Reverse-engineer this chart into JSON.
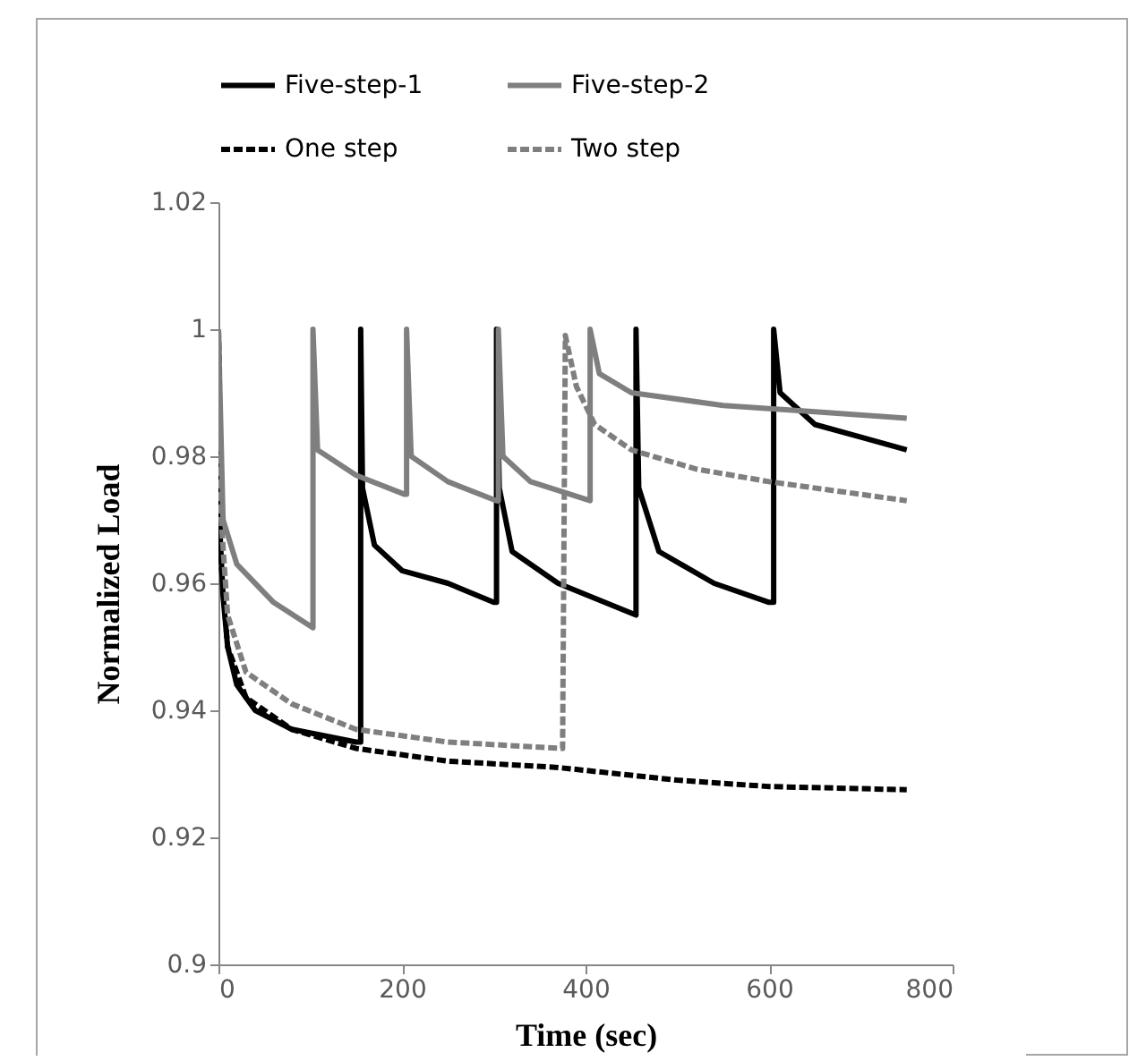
{
  "chart_data": {
    "type": "line",
    "xlabel": "Time (sec)",
    "ylabel": "Normalized Load",
    "xlim": [
      0,
      800
    ],
    "xticks": [
      0,
      200,
      400,
      600,
      800
    ],
    "ylim": [
      0.9,
      1.02
    ],
    "yticks": [
      0.9,
      0.92,
      0.94,
      0.96,
      0.98,
      1,
      1.02
    ],
    "grid": false,
    "legend": "top",
    "marker": "none",
    "series": [
      {
        "name": "Five-step-1",
        "color": "#000000",
        "line_style": "solid",
        "x": [
          0,
          2,
          5,
          10,
          20,
          40,
          80,
          150,
          155,
          155,
          157,
          170,
          200,
          250,
          300,
          303,
          303,
          306,
          320,
          370,
          455,
          455,
          455,
          458,
          480,
          540,
          600,
          605,
          605,
          612,
          650,
          700,
          750
        ],
        "values": [
          1,
          0.967,
          0.958,
          0.95,
          0.944,
          0.94,
          0.937,
          0.935,
          0.935,
          1,
          0.975,
          0.966,
          0.962,
          0.96,
          0.957,
          0.957,
          1,
          0.975,
          0.965,
          0.96,
          0.955,
          0.955,
          1,
          0.975,
          0.965,
          0.96,
          0.957,
          0.957,
          1,
          0.99,
          0.985,
          0.983,
          0.981
        ]
      },
      {
        "name": "Five-step-2",
        "color": "#7f7f7f",
        "line_style": "solid",
        "x": [
          0,
          5,
          20,
          60,
          103,
          103,
          108,
          150,
          203,
          205,
          205,
          210,
          250,
          303,
          305,
          305,
          310,
          340,
          405,
          405,
          405,
          415,
          450,
          550,
          650,
          750
        ],
        "values": [
          1,
          0.97,
          0.963,
          0.957,
          0.953,
          1,
          0.981,
          0.977,
          0.974,
          0.974,
          1,
          0.98,
          0.976,
          0.973,
          0.973,
          1,
          0.98,
          0.976,
          0.973,
          0.973,
          1,
          0.993,
          0.99,
          0.988,
          0.987,
          0.986
        ]
      },
      {
        "name": "One step",
        "color": "#000000",
        "line_style": "dashed",
        "x": [
          0,
          2,
          10,
          30,
          80,
          150,
          250,
          370,
          500,
          600,
          750
        ],
        "values": [
          1,
          0.965,
          0.95,
          0.942,
          0.937,
          0.934,
          0.932,
          0.931,
          0.929,
          0.928,
          0.9275
        ]
      },
      {
        "name": "Two step",
        "color": "#7f7f7f",
        "line_style": "dashed",
        "x": [
          0,
          3,
          10,
          30,
          80,
          150,
          250,
          375,
          378,
          390,
          410,
          450,
          520,
          600,
          700,
          750
        ],
        "values": [
          1,
          0.97,
          0.955,
          0.946,
          0.941,
          0.937,
          0.935,
          0.934,
          0.999,
          0.991,
          0.985,
          0.981,
          0.978,
          0.976,
          0.974,
          0.973
        ]
      }
    ]
  }
}
